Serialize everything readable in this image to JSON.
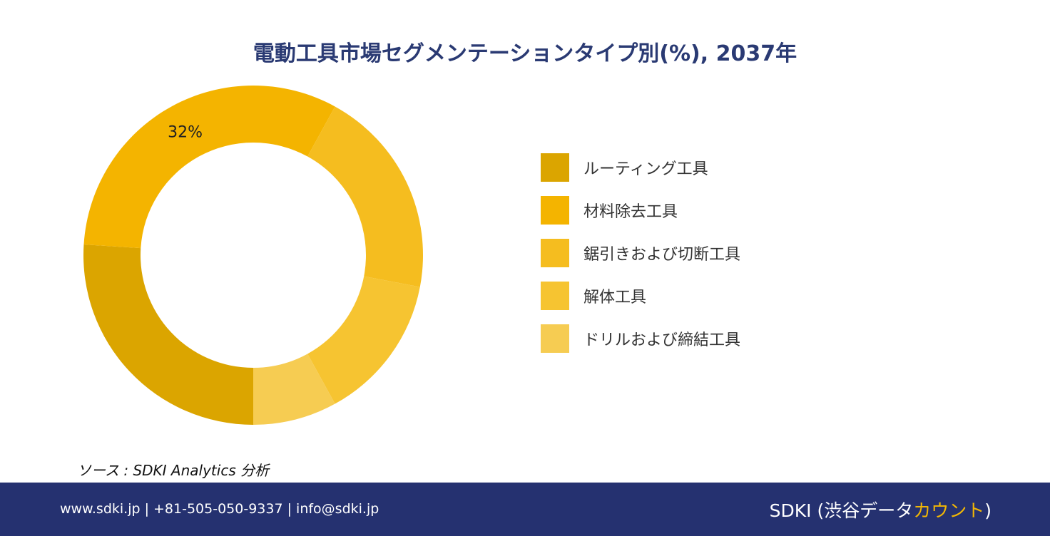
{
  "title": "電動工具市場セグメンテーションタイプ別(%), 2037年",
  "chart_data": {
    "type": "pie",
    "donut": true,
    "labels": [
      "ルーティング工具",
      "材料除去工具",
      "鋸引きおよび切断工具",
      "解体工具",
      "ドリルおよび締結工具"
    ],
    "values": [
      26,
      32,
      20,
      14,
      8
    ],
    "colors": [
      "#dba500",
      "#f4b400",
      "#f5bd1f",
      "#f6c431",
      "#f6cc52"
    ],
    "data_labels": [
      "",
      "32%",
      "",
      "",
      ""
    ],
    "start_angle_deg": 90,
    "direction": "clockwise",
    "legend_position": "right"
  },
  "source": "ソース : SDKI Analytics 分析",
  "footer": {
    "contact": "www.sdki.jp | +81-505-050-9337 | info@sdki.jp",
    "brand_prefix": "SDKI (渋谷データ",
    "brand_accent": "カウント",
    "brand_suffix": ")"
  }
}
